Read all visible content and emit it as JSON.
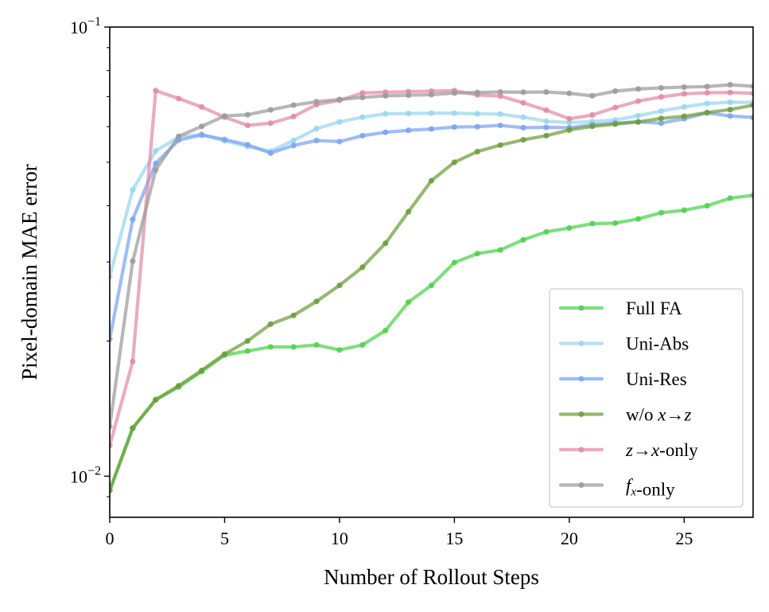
{
  "chart_data": {
    "type": "line",
    "title": "",
    "xlabel": "Number of Rollout Steps",
    "ylabel": "Pixel-domain MAE error",
    "yscale": "log",
    "xlim": [
      0,
      28
    ],
    "ylim": [
      0.0081,
      0.1
    ],
    "x_ticks": [
      0,
      5,
      10,
      15,
      20,
      25
    ],
    "x_tick_labels": [
      "0",
      "5",
      "10",
      "15",
      "20",
      "25"
    ],
    "y_ticks": [
      0.01,
      0.1
    ],
    "y_tick_labels": [
      {
        "base": "10",
        "exp": "−2"
      },
      {
        "base": "10",
        "exp": "−1"
      }
    ],
    "grid": false,
    "legend_position": "lower-right",
    "x": [
      0,
      1,
      2,
      3,
      4,
      5,
      6,
      7,
      8,
      9,
      10,
      11,
      12,
      13,
      14,
      15,
      16,
      17,
      18,
      19,
      20,
      21,
      22,
      23,
      24,
      25,
      26,
      27,
      28
    ],
    "series": [
      {
        "name": "Full FA",
        "color": "#4dd14d",
        "values": [
          0.0093,
          0.0128,
          0.0148,
          0.0158,
          0.0171,
          0.0186,
          0.019,
          0.0194,
          0.0194,
          0.0196,
          0.0191,
          0.0196,
          0.0211,
          0.0244,
          0.0266,
          0.0299,
          0.0313,
          0.0319,
          0.0336,
          0.035,
          0.0357,
          0.0365,
          0.0366,
          0.0374,
          0.0386,
          0.0391,
          0.04,
          0.0416,
          0.0422
        ]
      },
      {
        "name": "Uni-Abs",
        "color": "#99d6ef",
        "values": [
          0.0278,
          0.0434,
          0.053,
          0.0569,
          0.0577,
          0.0558,
          0.0542,
          0.0529,
          0.0559,
          0.0594,
          0.0615,
          0.063,
          0.0641,
          0.0642,
          0.0643,
          0.0643,
          0.0641,
          0.064,
          0.063,
          0.0617,
          0.0613,
          0.0616,
          0.0621,
          0.0635,
          0.065,
          0.0664,
          0.0676,
          0.068,
          0.068
        ]
      },
      {
        "name": "Uni-Res",
        "color": "#7ba4ee",
        "values": [
          0.0202,
          0.0373,
          0.0497,
          0.056,
          0.0575,
          0.0562,
          0.0547,
          0.0524,
          0.0545,
          0.0559,
          0.0556,
          0.0573,
          0.0583,
          0.0589,
          0.0593,
          0.0599,
          0.06,
          0.0604,
          0.0597,
          0.0598,
          0.0597,
          0.0606,
          0.0611,
          0.0615,
          0.0611,
          0.0625,
          0.0644,
          0.0634,
          0.0629
        ]
      },
      {
        "name": "w/o x→z",
        "label_parts": [
          {
            "t": "w/o "
          },
          {
            "t": "x",
            "i": true
          },
          {
            "t": "→"
          },
          {
            "t": "z",
            "i": true
          }
        ],
        "color": "#6f9c3a",
        "values": [
          0.0093,
          0.0128,
          0.0148,
          0.0159,
          0.0172,
          0.0187,
          0.02,
          0.0218,
          0.0228,
          0.0245,
          0.0266,
          0.0292,
          0.033,
          0.0388,
          0.0455,
          0.05,
          0.0528,
          0.0546,
          0.0561,
          0.0573,
          0.059,
          0.0601,
          0.0608,
          0.0615,
          0.0626,
          0.0633,
          0.0645,
          0.0655,
          0.067
        ]
      },
      {
        "name": "z→x-only",
        "label_parts": [
          {
            "t": "z",
            "i": true
          },
          {
            "t": "→"
          },
          {
            "t": "x",
            "i": true
          },
          {
            "t": "-only"
          }
        ],
        "color": "#e08aa8",
        "values": [
          0.0117,
          0.018,
          0.0722,
          0.0693,
          0.0664,
          0.063,
          0.0604,
          0.0611,
          0.0632,
          0.0672,
          0.0687,
          0.0713,
          0.0716,
          0.0718,
          0.072,
          0.0722,
          0.0706,
          0.0702,
          0.0678,
          0.0653,
          0.0625,
          0.0637,
          0.0662,
          0.0684,
          0.0699,
          0.071,
          0.0714,
          0.0715,
          0.0712
        ]
      },
      {
        "name": "f_x-only",
        "label_parts": [
          {
            "t": "f",
            "i": true
          },
          {
            "t": "x",
            "i": true,
            "sub": true
          },
          {
            "t": "-only"
          }
        ],
        "color": "#9b9b9b",
        "values": [
          0.0129,
          0.0301,
          0.0481,
          0.0571,
          0.0601,
          0.0634,
          0.0638,
          0.0654,
          0.067,
          0.0682,
          0.069,
          0.0697,
          0.0703,
          0.0705,
          0.0707,
          0.0713,
          0.0715,
          0.0717,
          0.0716,
          0.0717,
          0.0712,
          0.0703,
          0.072,
          0.0728,
          0.0732,
          0.0735,
          0.0737,
          0.0744,
          0.0738
        ]
      }
    ]
  }
}
